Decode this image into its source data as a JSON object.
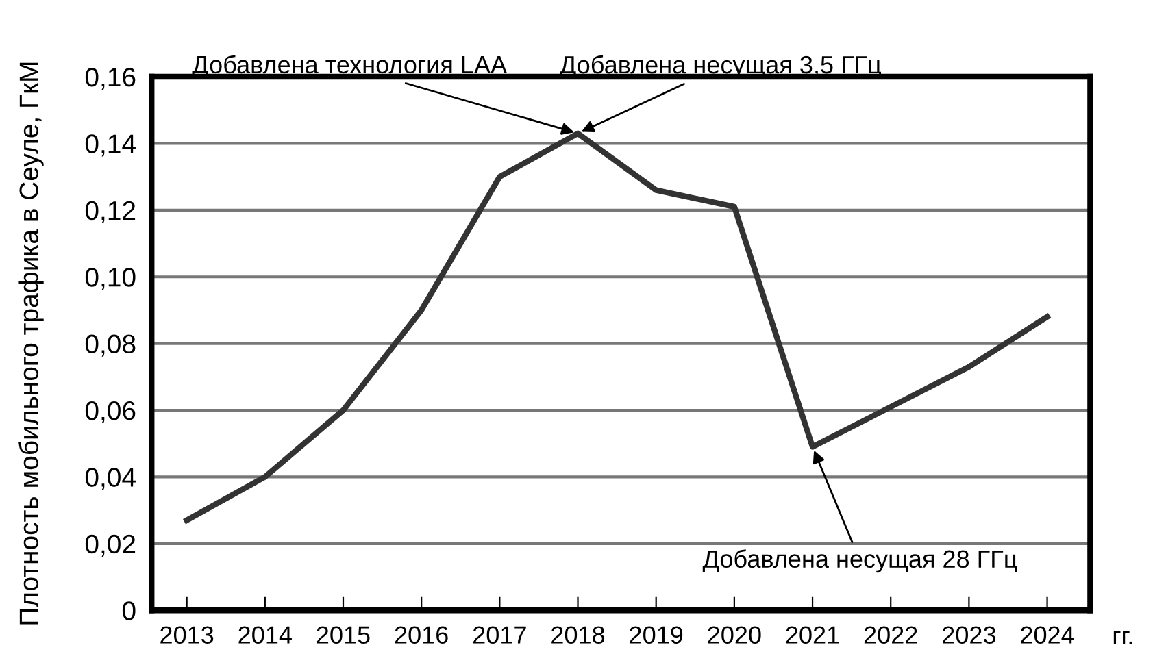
{
  "chart_data": {
    "type": "line",
    "ylabel": "Плотность мобильного трафика в Сеуле, ГкМ",
    "xlabel": "гг.",
    "categories": [
      "2013",
      "2014",
      "2015",
      "2016",
      "2017",
      "2018",
      "2019",
      "2020",
      "2021",
      "2022",
      "2023",
      "2024"
    ],
    "series": [
      {
        "color": "#333333",
        "values": [
          0.027,
          0.04,
          0.06,
          0.09,
          0.13,
          0.143,
          0.126,
          0.121,
          0.049,
          0.061,
          0.073,
          0.088
        ]
      }
    ],
    "ylim": [
      0,
      0.16
    ],
    "yticks": [
      {
        "value": 0,
        "label": "0"
      },
      {
        "value": 0.02,
        "label": "0,02"
      },
      {
        "value": 0.04,
        "label": "0,04"
      },
      {
        "value": 0.06,
        "label": "0,06"
      },
      {
        "value": 0.08,
        "label": "0,08"
      },
      {
        "value": 0.1,
        "label": "0,10"
      },
      {
        "value": 0.12,
        "label": "0,12"
      },
      {
        "value": 0.14,
        "label": "0,14"
      },
      {
        "value": 0.16,
        "label": "0,16"
      }
    ],
    "grid": "y",
    "marker": "none",
    "line_style": "solid",
    "legend": false,
    "annotations": [
      {
        "text": "Добавлена технология LAA",
        "x": "2018",
        "y": 0.143
      },
      {
        "text": "Добавлена несущая 3,5 ГГц",
        "x": "2018",
        "y": 0.143
      },
      {
        "text": "Добавлена несущая 28 ГГц",
        "x": "2021",
        "y": 0.049
      }
    ]
  }
}
